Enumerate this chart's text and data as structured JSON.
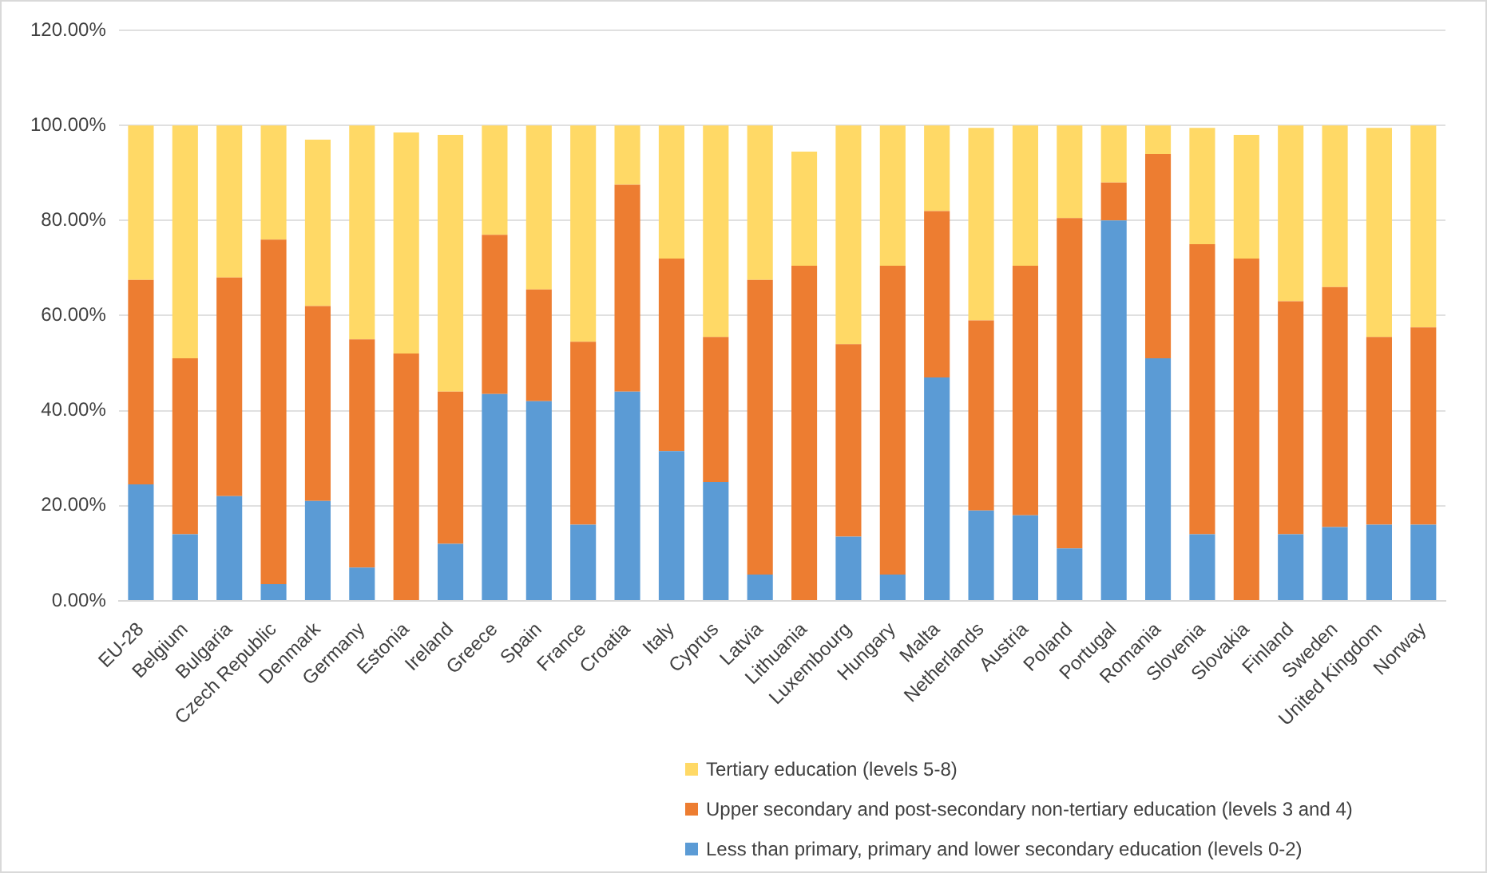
{
  "chart_data": {
    "type": "bar",
    "stacked": true,
    "categories": [
      "EU-28",
      "Belgium",
      "Bulgaria",
      "Czech Republic",
      "Denmark",
      "Germany",
      "Estonia",
      "Ireland",
      "Greece",
      "Spain",
      "France",
      "Croatia",
      "Italy",
      "Cyprus",
      "Latvia",
      "Lithuania",
      "Luxembourg",
      "Hungary",
      "Malta",
      "Netherlands",
      "Austria",
      "Poland",
      "Portugal",
      "Romania",
      "Slovenia",
      "Slovakia",
      "Finland",
      "Sweden",
      "United Kingdom",
      "Norway"
    ],
    "series": [
      {
        "name": "Less than primary, primary and lower secondary education (levels 0-2)",
        "color": "#5b9bd5",
        "values": [
          24.5,
          14,
          22,
          3.5,
          21,
          7,
          0,
          12,
          43.5,
          42,
          16,
          44,
          31.5,
          25,
          5.5,
          0,
          13.5,
          5.5,
          47,
          19,
          18,
          11,
          80,
          51,
          14,
          0,
          14,
          15.5,
          16,
          16
        ]
      },
      {
        "name": "Upper secondary and post-secondary non-tertiary education (levels 3 and 4)",
        "color": "#ed7d31",
        "values": [
          43,
          37,
          46,
          72.5,
          41,
          48,
          52,
          32,
          33.5,
          23.5,
          38.5,
          43.5,
          40.5,
          30.5,
          62,
          70.5,
          40.5,
          65,
          35,
          40,
          52.5,
          69.5,
          8,
          43,
          61,
          72,
          49,
          50.5,
          39.5,
          41.5
        ]
      },
      {
        "name": "Tertiary education (levels 5-8)",
        "color": "#ffd966",
        "values": [
          32.5,
          49,
          32,
          24,
          35,
          45,
          46.5,
          54,
          23,
          34.5,
          45.5,
          12.5,
          28,
          44.5,
          32.5,
          24,
          46,
          29.5,
          18,
          40.5,
          29.5,
          19.5,
          12,
          6,
          24.5,
          26,
          37,
          34,
          44,
          42.5
        ]
      }
    ],
    "ylim": [
      0,
      120
    ],
    "yticks": [
      {
        "value": 0,
        "label": "0.00%"
      },
      {
        "value": 20,
        "label": "20.00%"
      },
      {
        "value": 40,
        "label": "40.00%"
      },
      {
        "value": 60,
        "label": "60.00%"
      },
      {
        "value": 80,
        "label": "80.00%"
      },
      {
        "value": 100,
        "label": "100.00%"
      },
      {
        "value": 120,
        "label": "120.00%"
      }
    ],
    "grid": "y",
    "legend": "bottom"
  }
}
